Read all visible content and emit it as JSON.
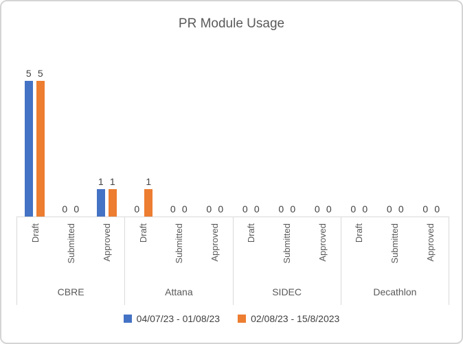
{
  "chart_data": {
    "type": "bar",
    "title": "PR Module Usage",
    "group_labels": [
      "CBRE",
      "Attana",
      "SIDEC",
      "Decathlon"
    ],
    "subcategories": [
      "Draft",
      "Submitted",
      "Approved"
    ],
    "series": [
      {
        "name": "04/07/23 - 01/08/23",
        "color": "#4472C4",
        "values": [
          [
            5,
            0,
            1
          ],
          [
            0,
            0,
            0
          ],
          [
            0,
            0,
            0
          ],
          [
            0,
            0,
            0
          ]
        ]
      },
      {
        "name": "02/08/23 - 15/8/2023",
        "color": "#ED7D31",
        "values": [
          [
            5,
            0,
            1
          ],
          [
            1,
            0,
            0
          ],
          [
            0,
            0,
            0
          ],
          [
            0,
            0,
            0
          ]
        ]
      }
    ],
    "ylim": [
      0,
      5
    ],
    "data_labels": true,
    "grid": false,
    "legend_position": "bottom",
    "axis_line_color": "#d9d9d9",
    "title_color": "#595959",
    "label_color": "#404040",
    "axis_text_color": "#595959"
  }
}
